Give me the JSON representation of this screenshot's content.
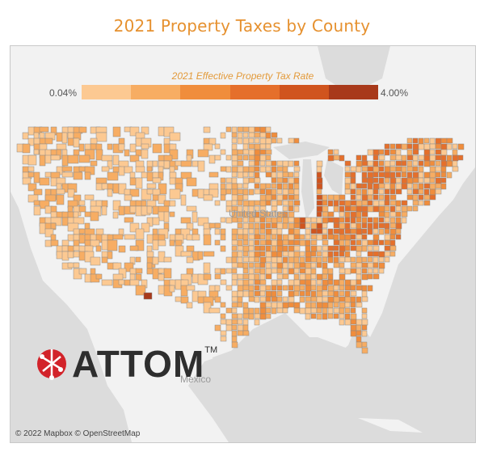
{
  "title": "2021 Property Taxes by County",
  "legend": {
    "title": "2021 Effective Property Tax Rate",
    "min_label": "0.04%",
    "max_label": "4.00%",
    "colors": [
      "#fcc992",
      "#f7ad63",
      "#f08d3c",
      "#e56f2b",
      "#d0541e",
      "#a8391a"
    ]
  },
  "map_labels": {
    "country_us": "United States",
    "country_mexico": "Mexico"
  },
  "brand": {
    "name": "ATTOM",
    "tm": "TM",
    "mark_color": "#d2232a"
  },
  "copyright": "© 2022 Mapbox © OpenStreetMap",
  "colors": {
    "land": "#f2f2f2",
    "water": "#dcdcdc",
    "county_border": "#8a8a8a",
    "title": "#e6912f"
  }
}
